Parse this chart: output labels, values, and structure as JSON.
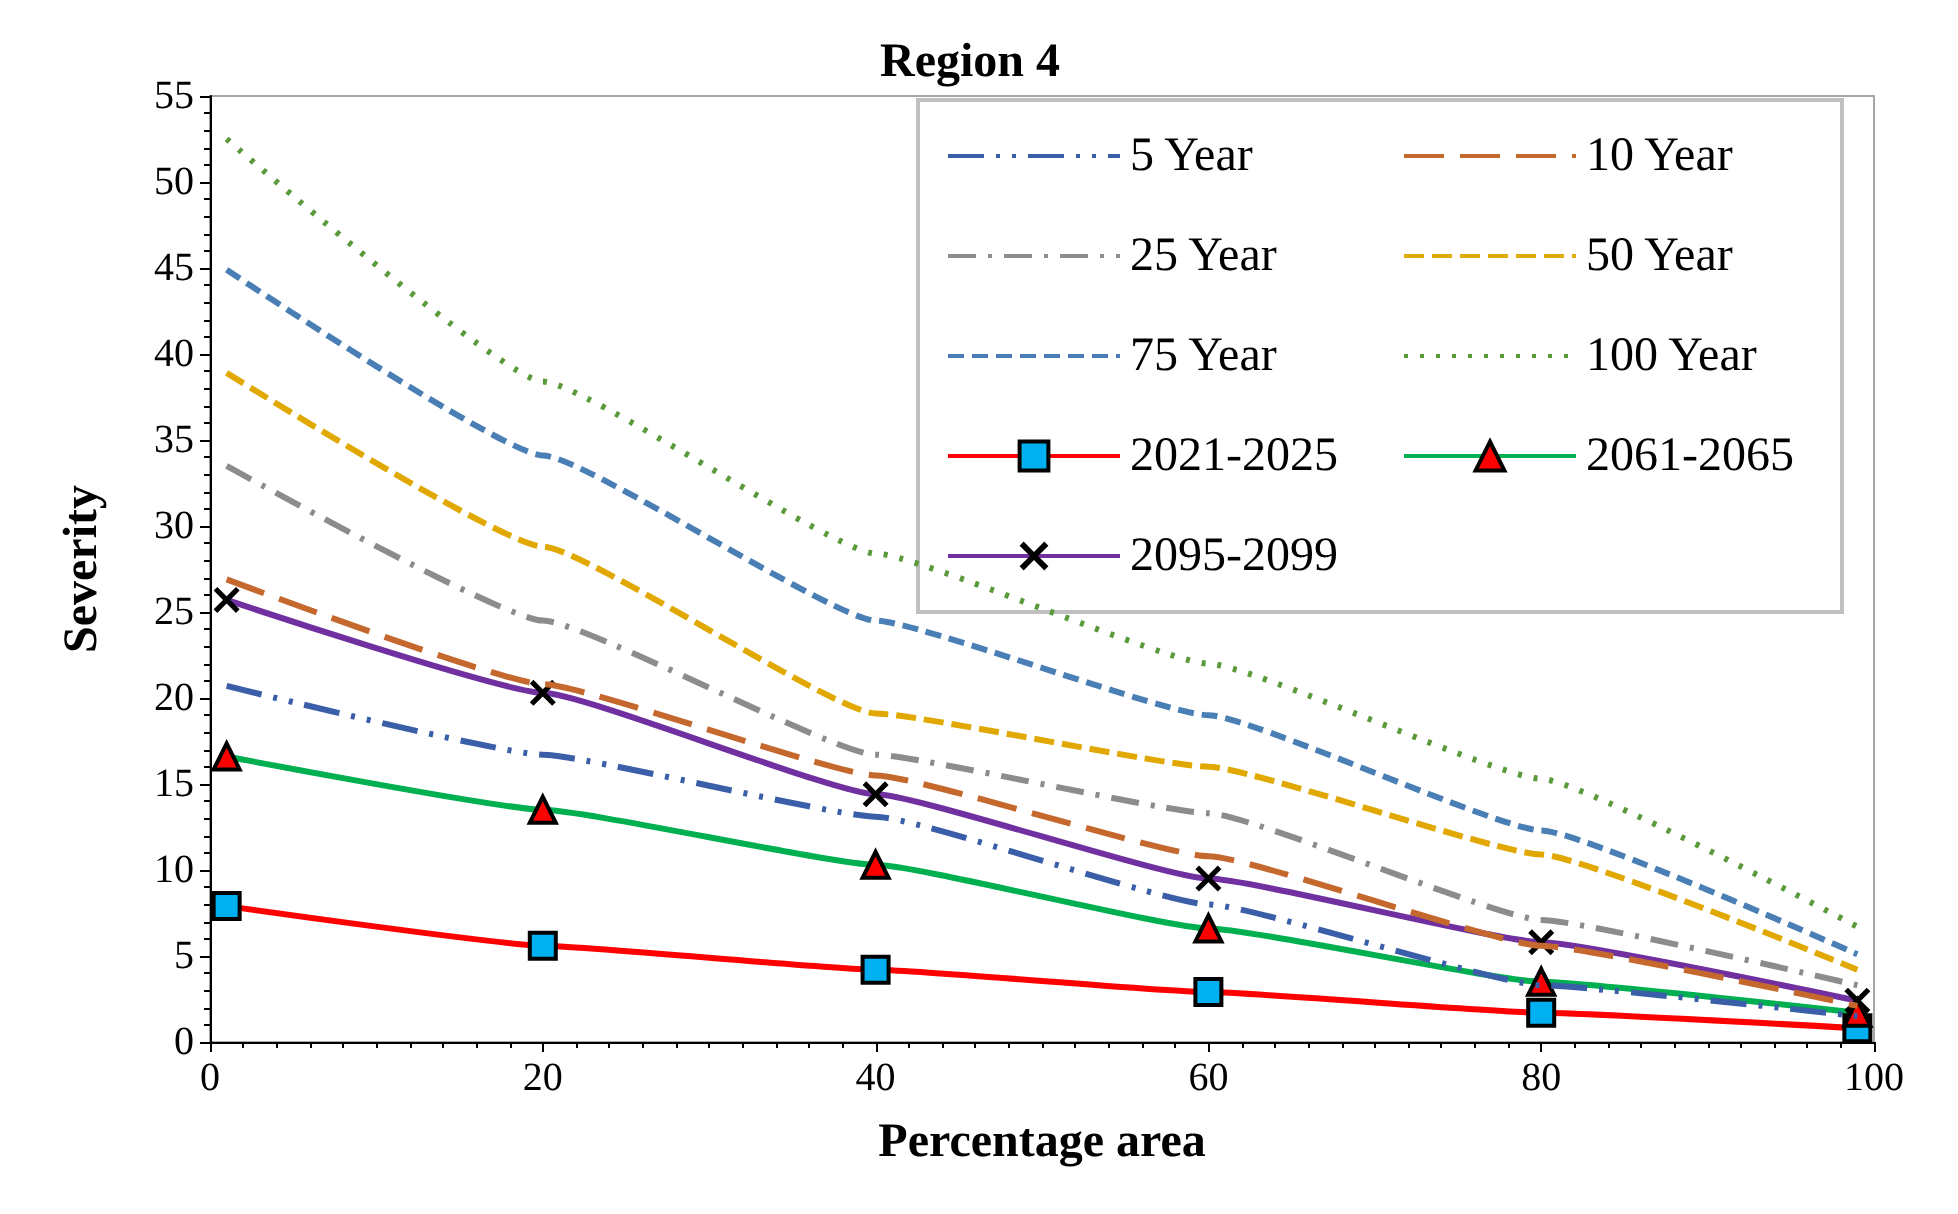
{
  "chart_data": {
    "type": "line",
    "title": "Region 4",
    "xlabel": "Percentage area",
    "ylabel": "Severity",
    "xlim": [
      0,
      100
    ],
    "xticks": [
      0,
      20,
      40,
      60,
      80,
      100
    ],
    "ylim": [
      0,
      55
    ],
    "yticks": [
      0,
      5,
      10,
      15,
      20,
      25,
      30,
      35,
      40,
      45,
      50,
      55
    ],
    "grid": false,
    "legend": "top right",
    "series": [
      {
        "name": "5 Year",
        "color": "#3a5ea8",
        "line_style": "dashdotdot",
        "marker": "none",
        "x": [
          1,
          20,
          40,
          60,
          80,
          99
        ],
        "values": [
          20.7,
          16.7,
          13.1,
          8.0,
          3.3,
          1.5
        ]
      },
      {
        "name": "10 Year",
        "color": "#c5682e",
        "line_style": "longdash",
        "marker": "none",
        "x": [
          1,
          20,
          40,
          60,
          80,
          99
        ],
        "values": [
          26.9,
          20.8,
          15.5,
          10.8,
          5.6,
          2.1
        ]
      },
      {
        "name": "25 Year",
        "color": "#8c8c8c",
        "line_style": "dashdot",
        "marker": "none",
        "x": [
          1,
          20,
          40,
          60,
          80,
          99
        ],
        "values": [
          33.5,
          24.5,
          16.7,
          13.3,
          7.1,
          3.3
        ]
      },
      {
        "name": "50 Year",
        "color": "#e0a800",
        "line_style": "dashed",
        "marker": "none",
        "x": [
          1,
          20,
          40,
          60,
          80,
          99
        ],
        "values": [
          38.9,
          28.8,
          19.1,
          16.0,
          10.9,
          4.2
        ]
      },
      {
        "name": "75 Year",
        "color": "#4a7fb5",
        "line_style": "shortdash",
        "marker": "none",
        "x": [
          1,
          20,
          40,
          60,
          80,
          99
        ],
        "values": [
          44.9,
          34.1,
          24.5,
          19.0,
          12.3,
          5.1
        ]
      },
      {
        "name": "100 Year",
        "color": "#5a9a3a",
        "line_style": "dotted",
        "marker": "none",
        "x": [
          1,
          20,
          40,
          60,
          80,
          99
        ],
        "values": [
          52.5,
          38.4,
          28.4,
          22.0,
          15.3,
          6.7
        ]
      },
      {
        "name": "2021-2025",
        "color": "#ff0000",
        "line_style": "solid",
        "marker": "square",
        "x": [
          1,
          20,
          40,
          60,
          80,
          99
        ],
        "values": [
          7.9,
          5.6,
          4.2,
          2.9,
          1.7,
          0.8
        ]
      },
      {
        "name": "2061-2065",
        "color": "#00b050",
        "line_style": "solid",
        "marker": "triangle",
        "x": [
          1,
          20,
          40,
          60,
          80,
          99
        ],
        "values": [
          16.6,
          13.5,
          10.3,
          6.6,
          3.5,
          1.7
        ]
      },
      {
        "name": "2095-2099",
        "color": "#7030a0",
        "line_style": "solid",
        "marker": "cross",
        "x": [
          1,
          20,
          40,
          60,
          80,
          99
        ],
        "values": [
          25.7,
          20.3,
          14.4,
          9.5,
          5.8,
          2.4
        ]
      }
    ]
  }
}
